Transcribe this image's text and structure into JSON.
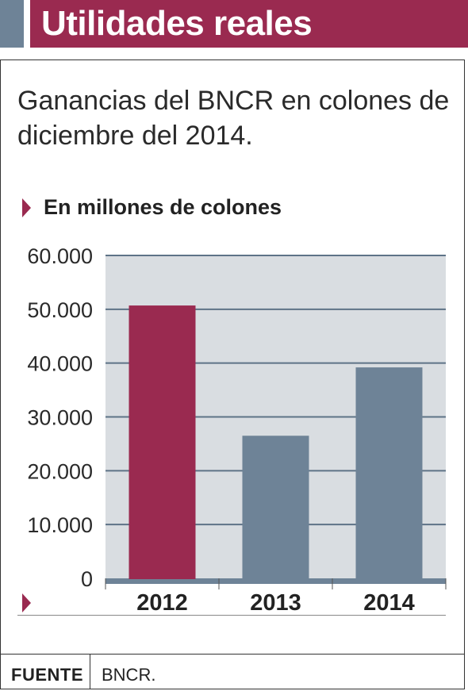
{
  "header": {
    "title": "Utilidades reales"
  },
  "subtitle": "Ganancias del BNCR en colones de diciembre del 2014.",
  "units_label": "En millones de colones",
  "footer": {
    "label": "FUENTE",
    "value": "BNCR."
  },
  "colors": {
    "header": "#9a2a50",
    "accent_bar": "#9a2a50",
    "bar": "#6e8397",
    "plot_bg": "#d9dde1",
    "gridline": "#5e7387"
  },
  "chart_data": {
    "type": "bar",
    "title": "Utilidades reales",
    "subtitle": "Ganancias del BNCR en colones de diciembre del 2014.",
    "ylabel": "En millones de colones",
    "categories": [
      "2012",
      "2013",
      "2014"
    ],
    "values": [
      50700,
      26500,
      39200
    ],
    "highlight": [
      true,
      false,
      false
    ],
    "ylim": [
      0,
      60000
    ],
    "yticks": [
      0,
      10000,
      20000,
      30000,
      40000,
      50000,
      60000
    ],
    "ytick_labels": [
      "0",
      "10.000",
      "20.000",
      "30.000",
      "40.000",
      "50.000",
      "60.000"
    ],
    "grid": true,
    "legend": "none"
  }
}
